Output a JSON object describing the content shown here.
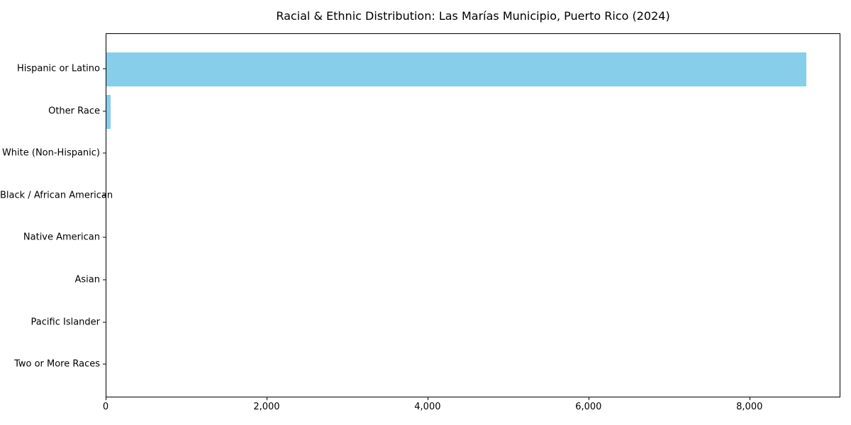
{
  "chart_data": {
    "type": "bar",
    "orientation": "horizontal",
    "title": "Racial & Ethnic Distribution: Las Marías Municipio, Puerto Rico (2024)",
    "categories": [
      "Hispanic or Latino",
      "Other Race",
      "White (Non-Hispanic)",
      "Black / African American",
      "Native American",
      "Asian",
      "Pacific Islander",
      "Two or More Races"
    ],
    "values": [
      8700,
      50,
      0,
      0,
      0,
      0,
      0,
      0
    ],
    "xlabel": "",
    "ylabel": "",
    "xlim": [
      0,
      9130
    ],
    "x_ticks": [
      0,
      2000,
      4000,
      6000,
      8000
    ],
    "x_tick_labels": [
      "0",
      "2,000",
      "4,000",
      "6,000",
      "8,000"
    ],
    "grid": "off",
    "legend": "none",
    "bar_color": "#87CEEB",
    "spine_color": "#000000",
    "text_color": "#000000",
    "background_color": "#ffffff"
  }
}
